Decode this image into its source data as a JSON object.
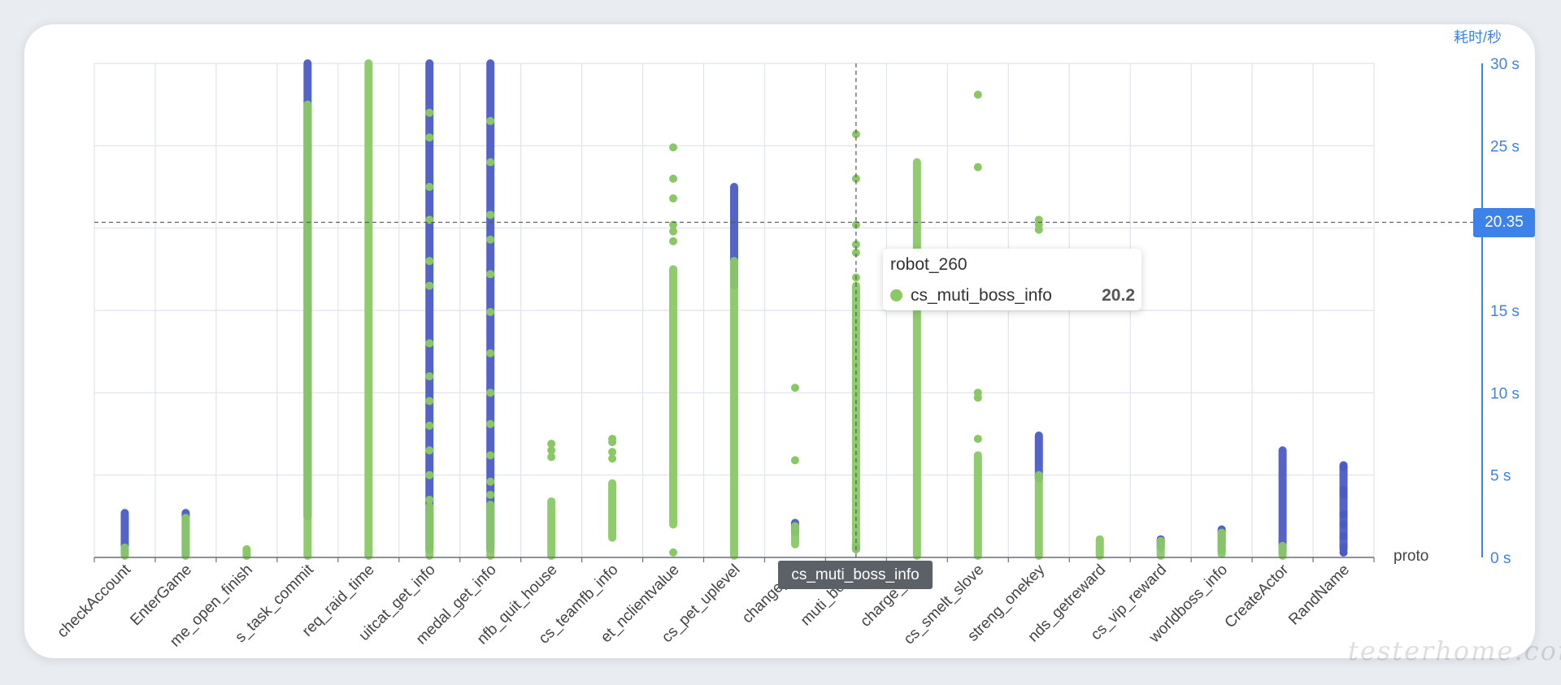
{
  "chart_data": {
    "type": "scatter",
    "xlabel": "proto",
    "ylabel": "耗时/秒",
    "ylim": [
      0,
      30
    ],
    "y_ticks": [
      "0 s",
      "5 s",
      "10 s",
      "15 s",
      "20 s",
      "25 s",
      "30 s"
    ],
    "grid": true,
    "categories": [
      "checkAccount",
      "EnterGame",
      "me_open_finish",
      "s_task_commit",
      "req_raid_time",
      "uitcat_get_info",
      "medal_get_info",
      "nfb_quit_house",
      "cs_teamfb_info",
      "et_nclientvalue",
      "cs_pet_uplevel",
      "change_sp",
      "muti_boss_",
      "charge_rew",
      "cs_smelt_slove",
      "streng_onekey",
      "nds_getreward",
      "cs_vip_reward",
      "worldboss_info",
      "CreateActor",
      "RandName"
    ],
    "series": [
      {
        "color": "#4a5bc4",
        "ranges": [
          [
            0.2,
            2.7
          ],
          [
            0.2,
            2.7
          ],
          null,
          [
            2.5,
            30
          ],
          null,
          [
            0.5,
            30
          ],
          [
            0.5,
            30
          ],
          null,
          null,
          null,
          [
            16.5,
            22.5
          ],
          [
            1.5,
            2.1
          ],
          [
            0.5,
            0.7
          ],
          null,
          null,
          [
            4.8,
            7.4
          ],
          null,
          [
            0.6,
            1.1
          ],
          [
            0.4,
            1.7
          ],
          [
            0.3,
            6.5
          ],
          [
            0.5,
            5.6
          ]
        ],
        "values": [
          [],
          [],
          [],
          [],
          [],
          [],
          [],
          [],
          [],
          [],
          [],
          [],
          [],
          [],
          [],
          [],
          [],
          [],
          [],
          [],
          [
            5.5,
            4.1,
            3.8,
            2.6,
            2.0,
            1.3,
            0.6,
            0.3
          ]
        ]
      },
      {
        "color": "#8ac866",
        "ranges": [
          [
            0.1,
            0.6
          ],
          [
            0.1,
            2.4
          ],
          null,
          [
            0.1,
            27.5
          ],
          [
            0.1,
            30
          ],
          [
            0.1,
            3.1
          ],
          [
            0.1,
            3.2
          ],
          [
            0.1,
            3.4
          ],
          [
            1.2,
            4.5
          ],
          [
            2.0,
            17.5
          ],
          [
            0.1,
            18.0
          ],
          [
            0.8,
            1.9
          ],
          [
            0.5,
            16.5
          ],
          [
            0.1,
            24.0
          ],
          [
            0.1,
            6.2
          ],
          [
            0.1,
            5.0
          ],
          [
            0.1,
            1.1
          ],
          [
            0.1,
            1.0
          ],
          [
            0.2,
            1.5
          ],
          [
            0.1,
            0.7
          ],
          null
        ],
        "values": [
          [],
          [],
          [
            0.1,
            0.2,
            0.3,
            0.4,
            0.5
          ],
          [],
          [],
          [
            3.5,
            5.0,
            6.5,
            8.0,
            9.5,
            11.0,
            13.0,
            16.5,
            18.0,
            20.5,
            22.5,
            25.5,
            27.0
          ],
          [
            3.8,
            4.6,
            6.2,
            8.1,
            10.0,
            12.4,
            14.9,
            17.2,
            19.3,
            20.8,
            24.0,
            26.5
          ],
          [
            6.1,
            6.5,
            6.9
          ],
          [
            6.0,
            6.4,
            7.0,
            7.2
          ],
          [
            0.3,
            19.2,
            19.8,
            20.2,
            21.8,
            23.0,
            24.9
          ],
          [],
          [
            5.9,
            10.3
          ],
          [
            17.0,
            18.5,
            19.0,
            20.2,
            23.0,
            25.7
          ],
          [],
          [
            7.2,
            9.7,
            10.0,
            23.7,
            28.1
          ],
          [
            20.2,
            20.5,
            19.9
          ],
          [],
          [],
          [],
          [],
          []
        ]
      }
    ]
  },
  "axis_pointer": {
    "x_label": "cs_muti_boss_info",
    "y_label": "20.35"
  },
  "tooltip": {
    "title": "robot_260",
    "series_name": "cs_muti_boss_info",
    "value": "20.2"
  },
  "watermark": "testerhome.com"
}
